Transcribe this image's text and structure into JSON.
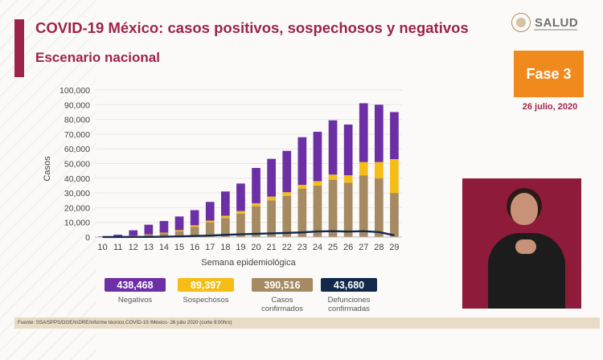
{
  "header": {
    "title": "COVID-19 México: casos positivos, sospechosos y negativos",
    "subtitle": "Escenario nacional"
  },
  "logo": {
    "text": "SALUD"
  },
  "phase": {
    "label": "Fase 3",
    "date": "26 julio, 2020"
  },
  "chart_data": {
    "type": "bar",
    "stacked": true,
    "categories": [
      "10",
      "11",
      "12",
      "13",
      "14",
      "15",
      "16",
      "17",
      "18",
      "19",
      "20",
      "21",
      "22",
      "23",
      "24",
      "25",
      "26",
      "27",
      "28",
      "29"
    ],
    "ylabel": "Casos",
    "xlabel": "Semana epidemiológica",
    "ylim": [
      0,
      100000
    ],
    "yticks": [
      0,
      10000,
      20000,
      30000,
      40000,
      50000,
      60000,
      70000,
      80000,
      90000,
      100000
    ],
    "ytick_labels": [
      "0",
      "10,000",
      "20,000",
      "30,000",
      "40,000",
      "50,000",
      "60,000",
      "70,000",
      "80,000",
      "90,000",
      "100,000"
    ],
    "series": [
      {
        "name": "Casos confirmados",
        "color": "#a58a62",
        "values": [
          50,
          300,
          800,
          1500,
          2500,
          4000,
          7000,
          10000,
          13000,
          16000,
          21000,
          25000,
          28000,
          33000,
          35000,
          39000,
          37000,
          42000,
          40000,
          30000
        ]
      },
      {
        "name": "Sospechosos",
        "color": "#f6bd16",
        "values": [
          50,
          100,
          200,
          300,
          500,
          700,
          1000,
          1200,
          1500,
          1700,
          2000,
          2500,
          2500,
          2500,
          3000,
          3500,
          5000,
          9000,
          11000,
          23000
        ]
      },
      {
        "name": "Negativos",
        "color": "#6c2fa6",
        "values": [
          400,
          1200,
          3600,
          6600,
          7900,
          9300,
          10300,
          12700,
          16500,
          18700,
          24000,
          25700,
          28100,
          32400,
          33600,
          36900,
          34500,
          40000,
          39000,
          32000
        ]
      }
    ],
    "line": {
      "name": "Defunciones confirmadas",
      "color": "#13294b",
      "values": [
        10,
        30,
        80,
        120,
        250,
        450,
        700,
        1000,
        1500,
        1900,
        2200,
        2500,
        2800,
        3200,
        3800,
        4000,
        3700,
        4000,
        3400,
        1200
      ]
    }
  },
  "totals": [
    {
      "value": "438,468",
      "label": "Negativos",
      "color": "#6c2fa6"
    },
    {
      "value": "89,397",
      "label": "Sospechosos",
      "color": "#f6bd16"
    },
    {
      "value": "390,516",
      "label": "Casos confirmados",
      "color": "#a58a62"
    },
    {
      "value": "43,680",
      "label": "Defunciones confirmadas",
      "color": "#13294b"
    }
  ],
  "source": "Fuente: SSA/SPPS/DGE/InDRE/Informe técnico.COVID-19 /México- 26 julio 2020 (corte 9:00hrs)"
}
